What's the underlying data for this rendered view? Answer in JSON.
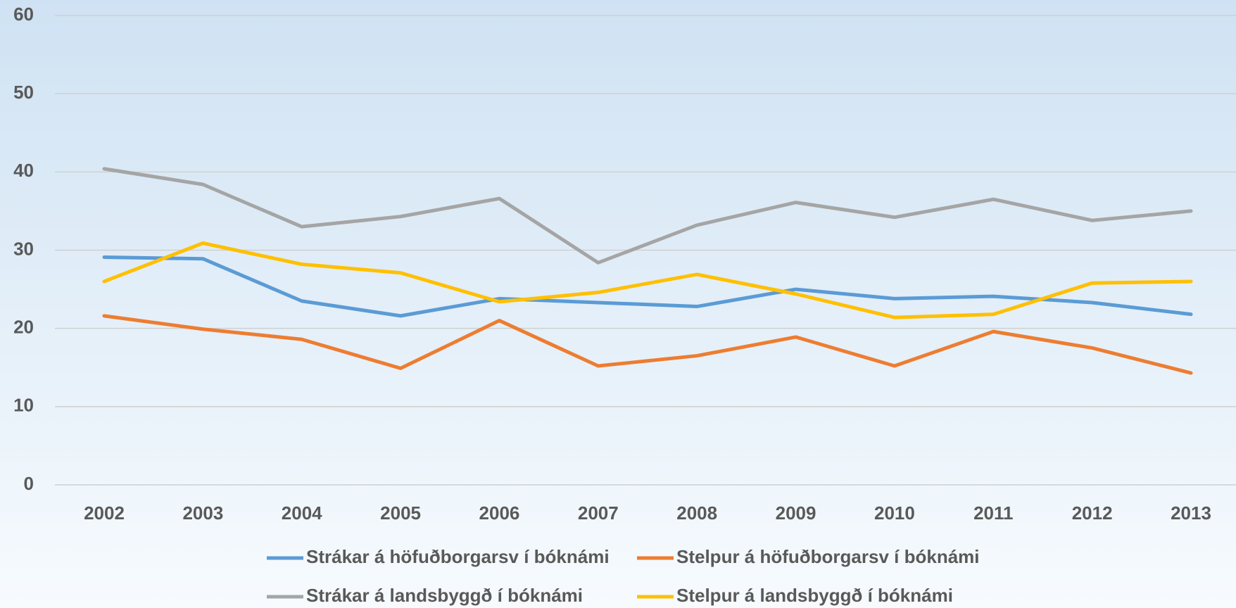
{
  "chart_data": {
    "type": "line",
    "categories": [
      "2002",
      "2003",
      "2004",
      "2005",
      "2006",
      "2007",
      "2008",
      "2009",
      "2010",
      "2011",
      "2012",
      "2013"
    ],
    "series": [
      {
        "name": "Strákar á höfuðborgarsv í bóknámi",
        "color": "#5b9bd5",
        "values": [
          29.1,
          28.9,
          23.5,
          21.6,
          23.8,
          23.3,
          22.8,
          25.0,
          23.8,
          24.1,
          23.3,
          21.8
        ]
      },
      {
        "name": "Stelpur á höfuðborgarsv í bóknámi",
        "color": "#ed7d31",
        "values": [
          21.6,
          19.9,
          18.6,
          14.9,
          21.0,
          15.2,
          16.5,
          18.9,
          15.2,
          19.6,
          17.5,
          14.3
        ]
      },
      {
        "name": "Strákar á landsbyggð í bóknámi",
        "color": "#a5a5a5",
        "values": [
          40.4,
          38.4,
          33.0,
          34.3,
          36.6,
          28.4,
          33.2,
          36.1,
          34.2,
          36.5,
          33.8,
          35.0
        ]
      },
      {
        "name": "Stelpur á landsbyggð í bóknámi",
        "color": "#ffc000",
        "values": [
          26.0,
          30.9,
          28.2,
          27.1,
          23.4,
          24.6,
          26.9,
          24.4,
          21.4,
          21.8,
          25.8,
          26.0
        ]
      }
    ],
    "ylim": [
      0,
      60
    ],
    "yticks": [
      0,
      10,
      20,
      30,
      40,
      50,
      60
    ],
    "grid": true,
    "legend": "bottom"
  }
}
